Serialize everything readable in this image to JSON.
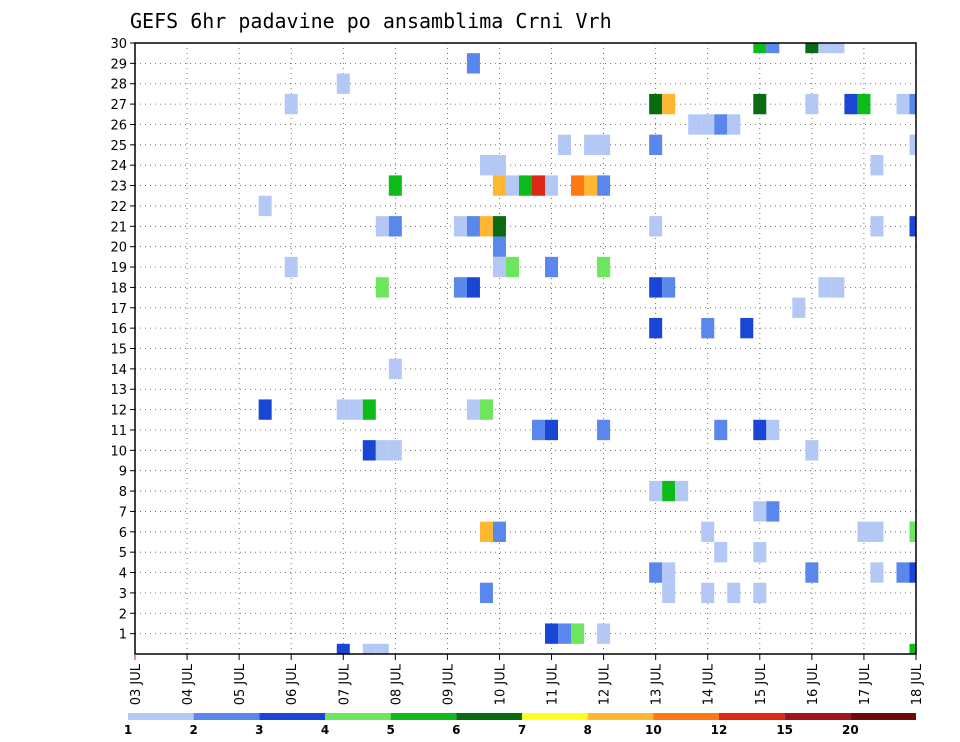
{
  "chart_data": {
    "type": "heatmap",
    "title": "GEFS 6hr padavine po ansamblima Crni Vrh",
    "x_labels": [
      "03 JUL",
      "04 JUL",
      "05 JUL",
      "06 JUL",
      "07 JUL",
      "08 JUL",
      "09 JUL",
      "10 JUL",
      "11 JUL",
      "12 JUL",
      "13 JUL",
      "14 JUL",
      "15 JUL",
      "16 JUL",
      "17 JUL",
      "18 JUL"
    ],
    "y_range": [
      0,
      30
    ],
    "y_ticks": [
      "1",
      "2",
      "3",
      "4",
      "5",
      "6",
      "7",
      "8",
      "9",
      "10",
      "11",
      "12",
      "13",
      "14",
      "15",
      "16",
      "17",
      "18",
      "19",
      "20",
      "21",
      "22",
      "23",
      "24",
      "25",
      "26",
      "27",
      "28",
      "29",
      "30"
    ],
    "grid": true,
    "color_scale": {
      "levels": [
        "1",
        "2",
        "3",
        "4",
        "5",
        "6",
        "7",
        "8",
        "10",
        "12",
        "15",
        "20"
      ],
      "colors": [
        "#b4c8f5",
        "#5a87ec",
        "#1a46d6",
        "#6de55d",
        "#0fbb1a",
        "#0b6b12",
        "#ffff1e",
        "#ffb732",
        "#ff7814",
        "#dc2814",
        "#a0141e",
        "#6e0a0a"
      ]
    },
    "cells": [
      {
        "x": 15.0,
        "y": 30,
        "v": 5.5
      },
      {
        "x": 15.25,
        "y": 30,
        "v": 2
      },
      {
        "x": 16.0,
        "y": 30,
        "v": 6.5
      },
      {
        "x": 16.25,
        "y": 30,
        "v": 1
      },
      {
        "x": 16.5,
        "y": 30,
        "v": 1
      },
      {
        "x": 9.5,
        "y": 29,
        "v": 2
      },
      {
        "x": 7.0,
        "y": 28,
        "v": 1
      },
      {
        "x": 6.0,
        "y": 27,
        "v": 1
      },
      {
        "x": 13.0,
        "y": 27,
        "v": 6.5
      },
      {
        "x": 13.25,
        "y": 27,
        "v": 8.5
      },
      {
        "x": 15.0,
        "y": 27,
        "v": 6.5
      },
      {
        "x": 16.0,
        "y": 27,
        "v": 1
      },
      {
        "x": 16.75,
        "y": 27,
        "v": 3
      },
      {
        "x": 17.0,
        "y": 27,
        "v": 5.5
      },
      {
        "x": 17.75,
        "y": 27,
        "v": 1
      },
      {
        "x": 18.0,
        "y": 27,
        "v": 2
      },
      {
        "x": 13.75,
        "y": 26,
        "v": 1
      },
      {
        "x": 14.0,
        "y": 26,
        "v": 1
      },
      {
        "x": 14.25,
        "y": 26,
        "v": 2
      },
      {
        "x": 14.5,
        "y": 26,
        "v": 1
      },
      {
        "x": 11.25,
        "y": 25,
        "v": 1
      },
      {
        "x": 11.75,
        "y": 25,
        "v": 1
      },
      {
        "x": 12.0,
        "y": 25,
        "v": 1
      },
      {
        "x": 13.0,
        "y": 25,
        "v": 2
      },
      {
        "x": 18.0,
        "y": 25,
        "v": 1
      },
      {
        "x": 9.75,
        "y": 24,
        "v": 1
      },
      {
        "x": 10.0,
        "y": 24,
        "v": 1
      },
      {
        "x": 17.25,
        "y": 24,
        "v": 1
      },
      {
        "x": 8.0,
        "y": 23,
        "v": 5.5
      },
      {
        "x": 10.0,
        "y": 23,
        "v": 8.5
      },
      {
        "x": 10.25,
        "y": 23,
        "v": 1
      },
      {
        "x": 10.5,
        "y": 23,
        "v": 5.5
      },
      {
        "x": 10.75,
        "y": 23,
        "v": 13
      },
      {
        "x": 11.0,
        "y": 23,
        "v": 1
      },
      {
        "x": 11.5,
        "y": 23,
        "v": 11
      },
      {
        "x": 11.75,
        "y": 23,
        "v": 8.5
      },
      {
        "x": 12.0,
        "y": 23,
        "v": 2
      },
      {
        "x": 5.5,
        "y": 22,
        "v": 1
      },
      {
        "x": 7.75,
        "y": 21,
        "v": 1
      },
      {
        "x": 8.0,
        "y": 21,
        "v": 2
      },
      {
        "x": 9.25,
        "y": 21,
        "v": 1
      },
      {
        "x": 9.5,
        "y": 21,
        "v": 2
      },
      {
        "x": 9.75,
        "y": 21,
        "v": 8.5
      },
      {
        "x": 10.0,
        "y": 21,
        "v": 6.5
      },
      {
        "x": 13.0,
        "y": 21,
        "v": 1
      },
      {
        "x": 17.25,
        "y": 21,
        "v": 1
      },
      {
        "x": 18.0,
        "y": 21,
        "v": 3
      },
      {
        "x": 10.0,
        "y": 20,
        "v": 2
      },
      {
        "x": 6.0,
        "y": 19,
        "v": 1
      },
      {
        "x": 10.0,
        "y": 19,
        "v": 1
      },
      {
        "x": 10.25,
        "y": 19,
        "v": 4.5
      },
      {
        "x": 11.0,
        "y": 19,
        "v": 2
      },
      {
        "x": 12.0,
        "y": 19,
        "v": 4.5
      },
      {
        "x": 7.75,
        "y": 18,
        "v": 4.5
      },
      {
        "x": 9.25,
        "y": 18,
        "v": 2
      },
      {
        "x": 9.5,
        "y": 18,
        "v": 3
      },
      {
        "x": 13.0,
        "y": 18,
        "v": 3
      },
      {
        "x": 13.25,
        "y": 18,
        "v": 2
      },
      {
        "x": 16.25,
        "y": 18,
        "v": 1
      },
      {
        "x": 16.5,
        "y": 18,
        "v": 1
      },
      {
        "x": 15.75,
        "y": 17,
        "v": 1
      },
      {
        "x": 13.0,
        "y": 16,
        "v": 3
      },
      {
        "x": 14.0,
        "y": 16,
        "v": 2
      },
      {
        "x": 14.75,
        "y": 16,
        "v": 3
      },
      {
        "x": 8.0,
        "y": 14,
        "v": 1
      },
      {
        "x": 5.5,
        "y": 12,
        "v": 3
      },
      {
        "x": 7.0,
        "y": 12,
        "v": 1
      },
      {
        "x": 7.25,
        "y": 12,
        "v": 1
      },
      {
        "x": 7.5,
        "y": 12,
        "v": 5.5
      },
      {
        "x": 9.5,
        "y": 12,
        "v": 1
      },
      {
        "x": 9.75,
        "y": 12,
        "v": 4.5
      },
      {
        "x": 10.75,
        "y": 11,
        "v": 2
      },
      {
        "x": 11.0,
        "y": 11,
        "v": 3
      },
      {
        "x": 12.0,
        "y": 11,
        "v": 2
      },
      {
        "x": 14.25,
        "y": 11,
        "v": 2
      },
      {
        "x": 15.0,
        "y": 11,
        "v": 3
      },
      {
        "x": 15.25,
        "y": 11,
        "v": 1
      },
      {
        "x": 7.5,
        "y": 10,
        "v": 3
      },
      {
        "x": 7.75,
        "y": 10,
        "v": 1
      },
      {
        "x": 8.0,
        "y": 10,
        "v": 1
      },
      {
        "x": 16.0,
        "y": 10,
        "v": 1
      },
      {
        "x": 13.0,
        "y": 8,
        "v": 1
      },
      {
        "x": 13.25,
        "y": 8,
        "v": 5.5
      },
      {
        "x": 13.5,
        "y": 8,
        "v": 1
      },
      {
        "x": 15.0,
        "y": 7,
        "v": 1
      },
      {
        "x": 15.25,
        "y": 7,
        "v": 2
      },
      {
        "x": 9.75,
        "y": 6,
        "v": 8.5
      },
      {
        "x": 10.0,
        "y": 6,
        "v": 2
      },
      {
        "x": 14.0,
        "y": 6,
        "v": 1
      },
      {
        "x": 17.0,
        "y": 6,
        "v": 1
      },
      {
        "x": 17.25,
        "y": 6,
        "v": 1
      },
      {
        "x": 18.0,
        "y": 6,
        "v": 4.5
      },
      {
        "x": 14.25,
        "y": 5,
        "v": 1
      },
      {
        "x": 15.0,
        "y": 5,
        "v": 1
      },
      {
        "x": 13.0,
        "y": 4,
        "v": 2
      },
      {
        "x": 13.25,
        "y": 4,
        "v": 1
      },
      {
        "x": 16.0,
        "y": 4,
        "v": 2
      },
      {
        "x": 17.25,
        "y": 4,
        "v": 1
      },
      {
        "x": 17.75,
        "y": 4,
        "v": 2
      },
      {
        "x": 18.0,
        "y": 4,
        "v": 3
      },
      {
        "x": 9.75,
        "y": 3,
        "v": 2
      },
      {
        "x": 13.25,
        "y": 3,
        "v": 1
      },
      {
        "x": 14.0,
        "y": 3,
        "v": 1
      },
      {
        "x": 14.5,
        "y": 3,
        "v": 1
      },
      {
        "x": 15.0,
        "y": 3,
        "v": 1
      },
      {
        "x": 11.0,
        "y": 1,
        "v": 3
      },
      {
        "x": 11.25,
        "y": 1,
        "v": 2
      },
      {
        "x": 11.5,
        "y": 1,
        "v": 4.5
      },
      {
        "x": 12.0,
        "y": 1,
        "v": 1
      },
      {
        "x": 7.0,
        "y": 0,
        "v": 3
      },
      {
        "x": 7.5,
        "y": 0,
        "v": 1
      },
      {
        "x": 7.75,
        "y": 0,
        "v": 1
      },
      {
        "x": 18.0,
        "y": 0,
        "v": 5.5
      }
    ]
  }
}
